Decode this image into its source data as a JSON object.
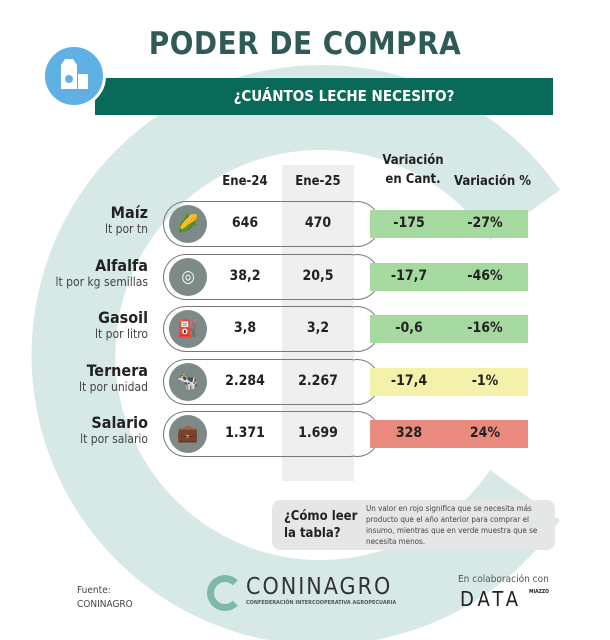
{
  "title": "PODER DE COMPRA",
  "subtitle": "¿CUÁNTOS LECHE NECESITO?",
  "columns": {
    "ene24": "Ene-24",
    "ene25": "Ene-25",
    "var_cant_1": "Variación",
    "var_cant_2": "en Cant.",
    "var_pct": "Variación %"
  },
  "rows": [
    {
      "name": "Maíz",
      "unit": "lt por tn",
      "icon": "corn-icon",
      "ene24": "646",
      "ene25": "470",
      "var_cant": "-175",
      "var_pct": "-27%",
      "color": "#a6d9a0"
    },
    {
      "name": "Alfalfa",
      "unit": "lt por kg semillas",
      "icon": "hay-bale-icon",
      "ene24": "38,2",
      "ene25": "20,5",
      "var_cant": "-17,7",
      "var_pct": "-46%",
      "color": "#a6d9a0"
    },
    {
      "name": "Gasoil",
      "unit": "lt por litro",
      "icon": "fuel-pump-icon",
      "ene24": "3,8",
      "ene25": "3,2",
      "var_cant": "-0,6",
      "var_pct": "-16%",
      "color": "#a6d9a0"
    },
    {
      "name": "Ternera",
      "unit": "lt por unidad",
      "icon": "cow-icon",
      "ene24": "2.284",
      "ene25": "2.267",
      "var_cant": "-17,4",
      "var_pct": "-1%",
      "color": "#f4f1ab"
    },
    {
      "name": "Salario",
      "unit": "lt por salario",
      "icon": "briefcase-icon",
      "ene24": "1.371",
      "ene25": "1.699",
      "var_cant": "328",
      "var_pct": "24%",
      "color": "#ea8a7f"
    }
  ],
  "help": {
    "question_1": "¿Cómo leer",
    "question_2": "la tabla?",
    "text": "Un valor en rojo significa que se necesita más producto que el año anterior para comprar el insumo, mientras que en verde muestra que se necesita menos."
  },
  "footer": {
    "source_label": "Fuente:",
    "source": "CONINAGRO",
    "logo": "CONINAGRO",
    "logo_sub": "Confederación Intercooperativa Agropecuaria",
    "collab": "En colaboración con",
    "partner": "DATA",
    "partner_sup": "MIAZZO"
  }
}
